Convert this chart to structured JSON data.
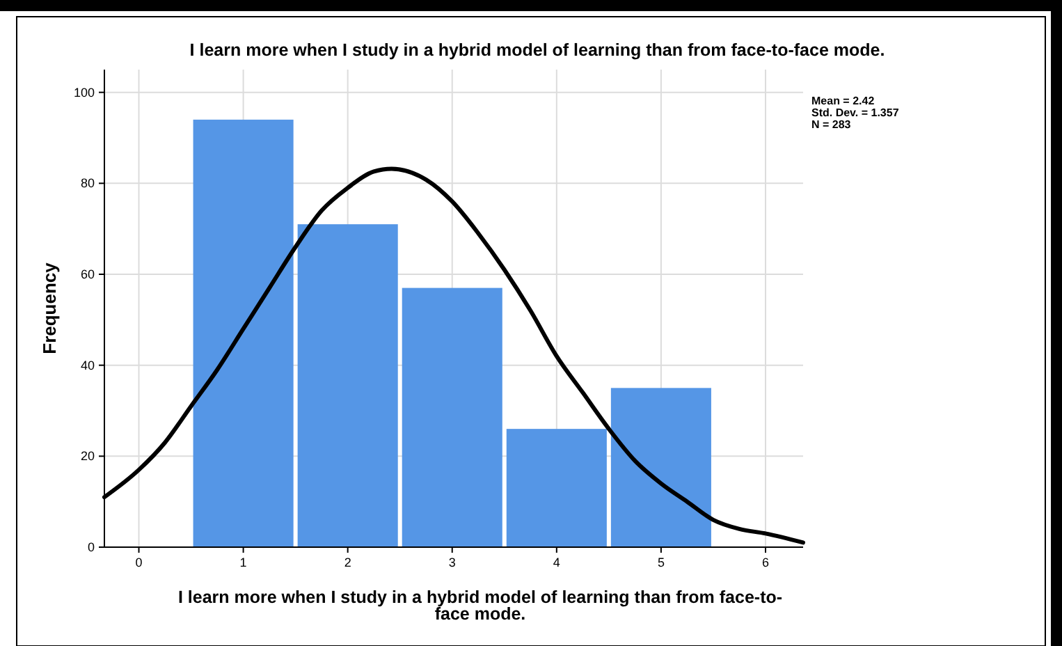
{
  "chart_data": {
    "type": "histogram",
    "title": "I learn more when I study in a hybrid model of learning than from face-to-face mode.",
    "xlabel": "I learn more when I study in a hybrid model of learning than from face-to-face mode.",
    "ylabel": "Frequency",
    "series": [
      {
        "type": "histogram",
        "color": "#5596e6",
        "bins": [
          0.5,
          1.5,
          2.5,
          3.5,
          4.5,
          5.5
        ],
        "values": [
          94,
          71,
          57,
          26,
          35
        ]
      },
      {
        "type": "line",
        "color": "#000000",
        "x": [
          -0.33,
          0,
          0.25,
          0.5,
          0.75,
          1,
          1.25,
          1.5,
          1.75,
          2,
          2.25,
          2.42,
          2.75,
          3,
          3.25,
          3.5,
          3.75,
          4,
          4.25,
          4.5,
          4.75,
          5,
          5.25,
          5.5,
          5.75,
          6,
          6.36
        ],
        "values": [
          11,
          17,
          23,
          31,
          39,
          48,
          57,
          66,
          74,
          79,
          82.6,
          83.2,
          80.8,
          76,
          69,
          61,
          52,
          42,
          34,
          26,
          19,
          14,
          10,
          6,
          4,
          3,
          1
        ]
      }
    ],
    "xlim": [
      -0.33,
      6.36
    ],
    "ylim": [
      0,
      105
    ],
    "xticks": [
      0,
      1,
      2,
      3,
      4,
      5,
      6
    ],
    "yticks": [
      0,
      20,
      40,
      60,
      80,
      100
    ],
    "grid": true,
    "line_style": "solid",
    "marker": "none",
    "annotations": [
      "Mean = 2.42",
      "Std. Dev. = 1.357",
      "N = 283"
    ]
  }
}
